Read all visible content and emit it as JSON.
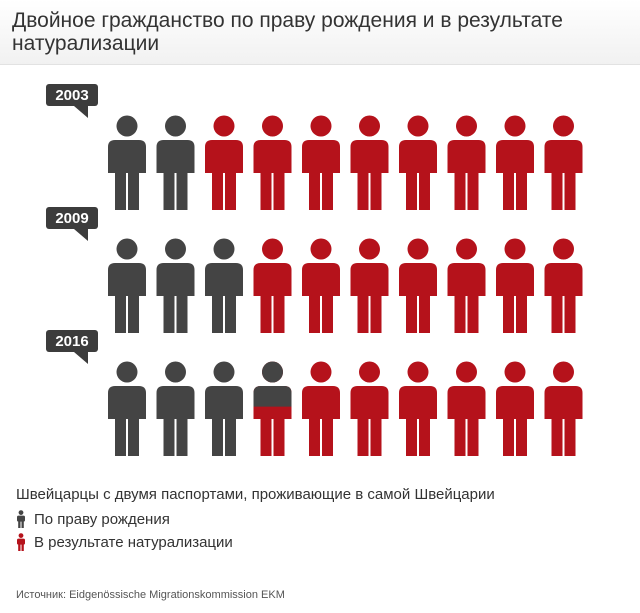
{
  "title": "Двойное гражданство по праву рождения и в результате натурализации",
  "chart_data": {
    "type": "pictogram",
    "icons_per_row": 10,
    "rows": [
      {
        "year": "2003",
        "by_birth": 2.0,
        "naturalized": 8.0
      },
      {
        "year": "2009",
        "by_birth": 3.0,
        "naturalized": 7.0
      },
      {
        "year": "2016",
        "by_birth": 3.5,
        "naturalized": 6.5
      }
    ],
    "legend": {
      "title": "Швейцарцы с двумя паспортами, проживающие в самой Швейцарии",
      "items": [
        {
          "label": "По праву рождения",
          "color": "#444444"
        },
        {
          "label": "В результате натурализации",
          "color": "#b5121b"
        }
      ]
    }
  },
  "source": "Источник: Eidgenössische Migrationskommission EKM"
}
